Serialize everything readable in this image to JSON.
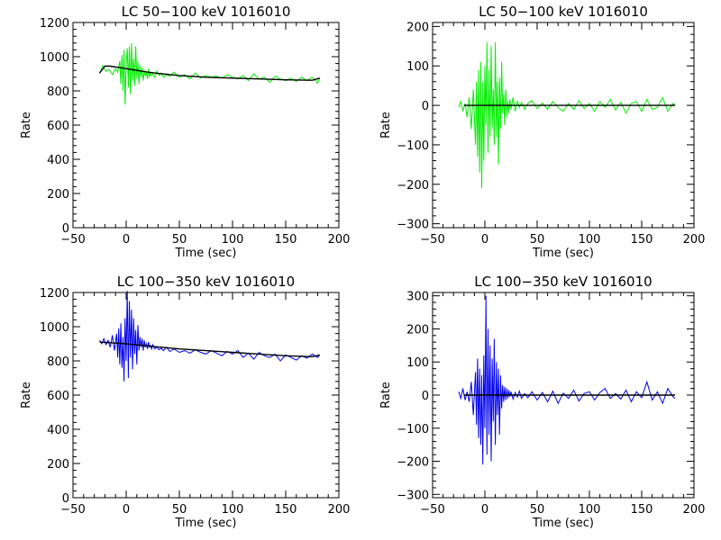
{
  "chart_data": [
    {
      "type": "line",
      "title": "LC 50−100 keV  1016010",
      "xlabel": "Time (sec)",
      "ylabel": "Rate",
      "xlim": [
        -50,
        200
      ],
      "ylim": [
        0,
        1200
      ],
      "xticks": [
        "−50",
        "0",
        "50",
        "100",
        "150",
        "200"
      ],
      "yticks": [
        "0",
        "200",
        "400",
        "600",
        "800",
        "1000",
        "1200"
      ],
      "series": [
        {
          "color": "#00ee00",
          "x": [
            -25,
            -22,
            -19,
            -16,
            -13,
            -10,
            -8,
            -6,
            -5,
            -4,
            -3,
            -2,
            -1,
            0,
            1,
            2,
            3,
            4,
            5,
            6,
            7,
            8,
            9,
            10,
            11,
            12,
            13,
            14,
            15,
            16,
            17,
            18,
            19,
            20,
            21,
            22,
            23,
            24,
            25,
            27,
            29,
            31,
            33,
            35,
            38,
            41,
            45,
            50,
            55,
            60,
            65,
            70,
            75,
            80,
            85,
            90,
            95,
            100,
            105,
            110,
            115,
            120,
            125,
            130,
            135,
            140,
            145,
            150,
            155,
            160,
            165,
            170,
            175,
            180,
            182
          ],
          "y": [
            900,
            948,
            915,
            925,
            895,
            930,
            910,
            975,
            840,
            1010,
            800,
            1040,
            720,
            960,
            1050,
            820,
            1060,
            780,
            1080,
            860,
            990,
            830,
            1060,
            870,
            970,
            840,
            950,
            880,
            935,
            860,
            920,
            890,
            905,
            870,
            930,
            880,
            910,
            890,
            900,
            880,
            915,
            890,
            905,
            880,
            895,
            885,
            910,
            880,
            895,
            870,
            905,
            875,
            890,
            880,
            885,
            875,
            895,
            880,
            870,
            890,
            860,
            900,
            870,
            880,
            850,
            885,
            870,
            860,
            875,
            855,
            880,
            860,
            880,
            845,
            878
          ]
        },
        {
          "color": "#000000",
          "x": [
            -25,
            -20,
            -15,
            -10,
            -5,
            0,
            10,
            20,
            30,
            50,
            75,
            100,
            125,
            150,
            175,
            182
          ],
          "y": [
            905,
            945,
            945,
            940,
            935,
            930,
            920,
            910,
            902,
            890,
            880,
            875,
            870,
            865,
            862,
            875
          ]
        }
      ]
    },
    {
      "type": "line",
      "title": "LC 50−100 keV  1016010",
      "xlabel": "Time (sec)",
      "ylabel": "Rate",
      "xlim": [
        -50,
        200
      ],
      "ylim": [
        -310,
        210
      ],
      "xticks": [
        "−50",
        "0",
        "50",
        "100",
        "150",
        "200"
      ],
      "yticks": [
        "−300",
        "−200",
        "−100",
        "0",
        "100",
        "200"
      ],
      "series": [
        {
          "color": "#00ee00",
          "x": [
            -25,
            -23,
            -21,
            -19,
            -17,
            -15,
            -13,
            -11,
            -9,
            -8,
            -7,
            -6,
            -5,
            -4,
            -3,
            -2,
            -1,
            0,
            1,
            2,
            3,
            4,
            5,
            6,
            7,
            8,
            9,
            10,
            11,
            12,
            13,
            14,
            15,
            16,
            17,
            18,
            19,
            20,
            21,
            22,
            23,
            24,
            25,
            27,
            29,
            31,
            33,
            35,
            38,
            41,
            45,
            50,
            55,
            60,
            65,
            70,
            75,
            80,
            85,
            90,
            95,
            100,
            105,
            110,
            115,
            120,
            125,
            130,
            135,
            140,
            145,
            150,
            155,
            160,
            165,
            170,
            175,
            180,
            182
          ],
          "y": [
            -5,
            10,
            -15,
            5,
            -30,
            20,
            -60,
            40,
            -100,
            60,
            -130,
            90,
            -170,
            110,
            -210,
            60,
            -140,
            100,
            -50,
            160,
            -120,
            90,
            -80,
            150,
            -60,
            40,
            -100,
            160,
            -80,
            60,
            -150,
            70,
            -60,
            110,
            -20,
            30,
            -50,
            40,
            -30,
            10,
            -20,
            15,
            -10,
            20,
            -15,
            10,
            -5,
            8,
            -10,
            5,
            12,
            -8,
            6,
            -10,
            10,
            -5,
            -15,
            5,
            -10,
            12,
            -8,
            5,
            -15,
            10,
            -5,
            15,
            -12,
            8,
            -20,
            5,
            10,
            -15,
            15,
            -10,
            -5,
            20,
            -15,
            5,
            0
          ]
        },
        {
          "color": "#000000",
          "x": [
            -20,
            182
          ],
          "y": [
            0,
            0
          ]
        }
      ]
    },
    {
      "type": "line",
      "title": "LC 100−350 keV  1016010",
      "xlabel": "Time (sec)",
      "ylabel": "Rate",
      "xlim": [
        -50,
        200
      ],
      "ylim": [
        0,
        1200
      ],
      "xticks": [
        "−50",
        "0",
        "50",
        "100",
        "150",
        "200"
      ],
      "yticks": [
        "0",
        "200",
        "400",
        "600",
        "800",
        "1000",
        "1200"
      ],
      "series": [
        {
          "color": "#0000ee",
          "x": [
            -25,
            -23,
            -21,
            -19,
            -17,
            -15,
            -13,
            -11,
            -9,
            -8,
            -7,
            -6,
            -5,
            -4,
            -3,
            -2,
            -1,
            0,
            1,
            2,
            3,
            4,
            5,
            6,
            7,
            8,
            9,
            10,
            11,
            12,
            13,
            14,
            15,
            16,
            17,
            18,
            19,
            20,
            21,
            22,
            23,
            24,
            25,
            27,
            29,
            31,
            33,
            35,
            38,
            41,
            45,
            50,
            55,
            60,
            65,
            70,
            75,
            80,
            85,
            90,
            95,
            100,
            105,
            110,
            115,
            120,
            125,
            130,
            135,
            140,
            145,
            150,
            155,
            160,
            165,
            170,
            175,
            180,
            182
          ],
          "y": [
            920,
            900,
            930,
            895,
            920,
            880,
            950,
            860,
            960,
            820,
            990,
            780,
            1020,
            760,
            940,
            680,
            1050,
            800,
            1210,
            700,
            1150,
            820,
            1100,
            750,
            1050,
            840,
            980,
            780,
            1010,
            860,
            940,
            880,
            930,
            860,
            920,
            880,
            900,
            870,
            910,
            880,
            890,
            870,
            895,
            870,
            880,
            865,
            875,
            860,
            880,
            855,
            870,
            850,
            860,
            845,
            865,
            850,
            840,
            860,
            845,
            830,
            855,
            840,
            860,
            820,
            845,
            810,
            850,
            830,
            820,
            840,
            800,
            835,
            820,
            805,
            830,
            815,
            840,
            820,
            835
          ]
        },
        {
          "color": "#000000",
          "x": [
            -25,
            0,
            25,
            50,
            75,
            100,
            125,
            150,
            175,
            182
          ],
          "y": [
            910,
            900,
            885,
            870,
            860,
            850,
            840,
            830,
            825,
            835
          ]
        }
      ]
    },
    {
      "type": "line",
      "title": "LC 100−350 keV  1016010",
      "xlabel": "Time (sec)",
      "ylabel": "Rate",
      "xlim": [
        -50,
        200
      ],
      "ylim": [
        -310,
        310
      ],
      "xticks": [
        "−50",
        "0",
        "50",
        "100",
        "150",
        "200"
      ],
      "yticks": [
        "−300",
        "−200",
        "−100",
        "0",
        "100",
        "200",
        "300"
      ],
      "series": [
        {
          "color": "#0000ee",
          "x": [
            -25,
            -23,
            -21,
            -19,
            -17,
            -15,
            -13,
            -11,
            -9,
            -8,
            -7,
            -6,
            -5,
            -4,
            -3,
            -2,
            -1,
            0,
            1,
            2,
            3,
            4,
            5,
            6,
            7,
            8,
            9,
            10,
            11,
            12,
            13,
            14,
            15,
            16,
            17,
            18,
            19,
            20,
            21,
            22,
            23,
            24,
            25,
            27,
            29,
            31,
            33,
            35,
            38,
            41,
            45,
            50,
            55,
            60,
            65,
            70,
            75,
            80,
            85,
            90,
            95,
            100,
            105,
            110,
            115,
            120,
            125,
            130,
            135,
            140,
            145,
            150,
            155,
            160,
            165,
            170,
            175,
            180,
            182
          ],
          "y": [
            10,
            -10,
            20,
            -15,
            10,
            -20,
            40,
            -60,
            70,
            -90,
            110,
            -130,
            80,
            -150,
            60,
            -210,
            120,
            -100,
            300,
            -180,
            200,
            -120,
            150,
            -200,
            110,
            -80,
            170,
            -150,
            100,
            -60,
            80,
            -120,
            60,
            -40,
            30,
            -20,
            25,
            -15,
            20,
            -10,
            15,
            -5,
            10,
            -12,
            8,
            -6,
            12,
            -10,
            5,
            -8,
            10,
            -15,
            8,
            -20,
            12,
            -25,
            6,
            -10,
            15,
            -18,
            5,
            10,
            -15,
            8,
            20,
            -10,
            5,
            -12,
            15,
            -20,
            10,
            -8,
            40,
            -15,
            10,
            -25,
            20,
            -5,
            -10
          ]
        },
        {
          "color": "#000000",
          "x": [
            -20,
            182
          ],
          "y": [
            0,
            0
          ]
        }
      ]
    }
  ]
}
